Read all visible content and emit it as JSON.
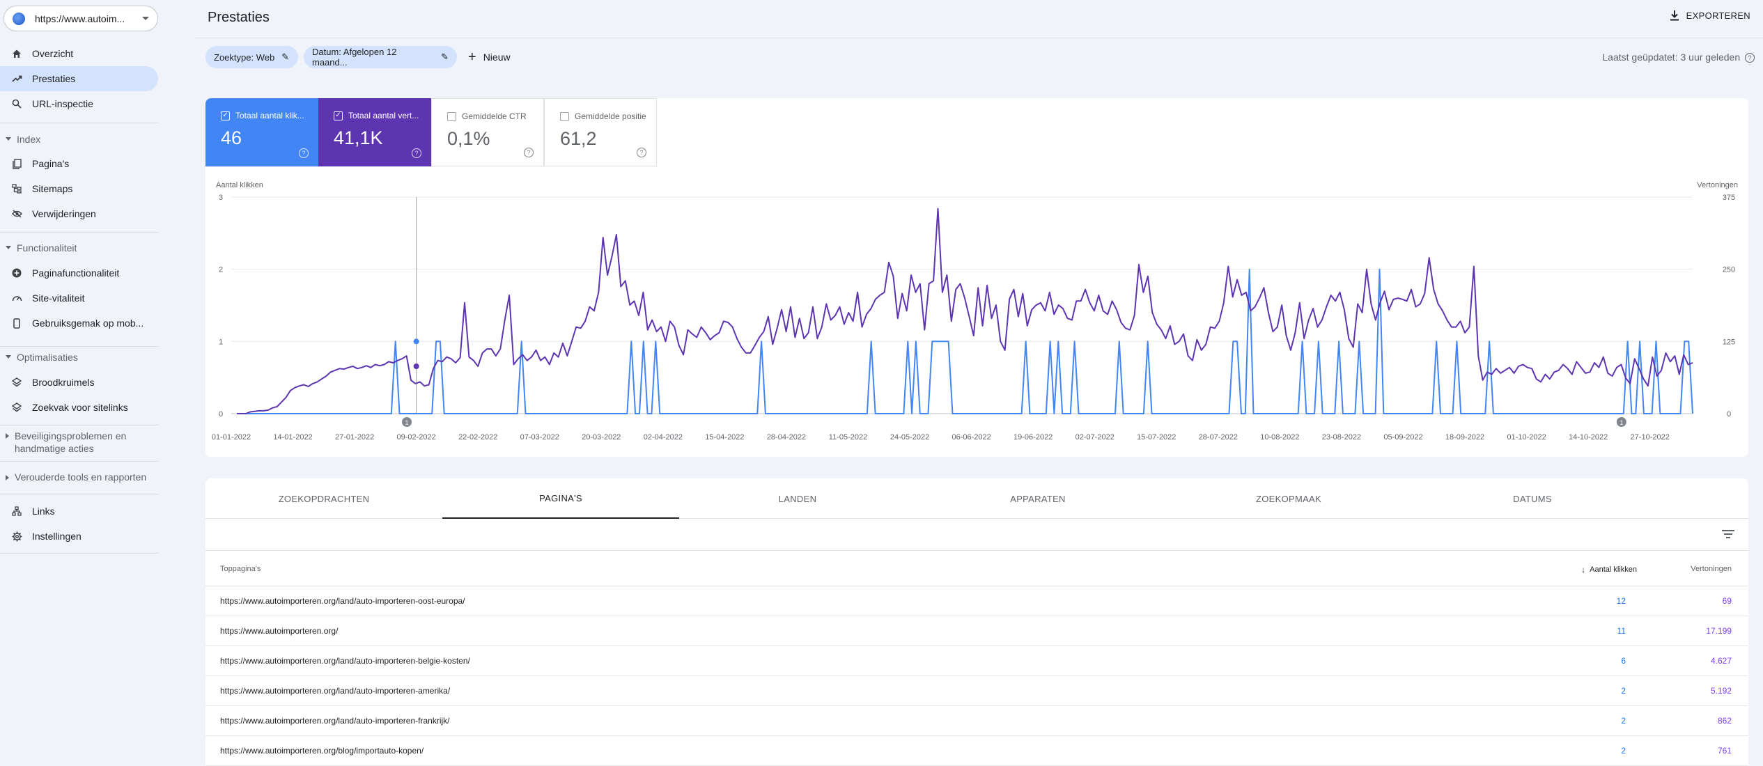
{
  "property": {
    "url": "https://www.autoim...",
    "icon": "globe-icon"
  },
  "sidebar": {
    "top": [
      {
        "label": "Overzicht",
        "icon": "home-icon"
      },
      {
        "label": "Prestaties",
        "icon": "trending-up-icon",
        "active": true
      },
      {
        "label": "URL-inspectie",
        "icon": "search-icon"
      }
    ],
    "groups": [
      {
        "label": "Index",
        "items": [
          {
            "label": "Pagina's",
            "icon": "pages-icon"
          },
          {
            "label": "Sitemaps",
            "icon": "sitemap-icon"
          },
          {
            "label": "Verwijderingen",
            "icon": "eye-off-icon"
          }
        ]
      },
      {
        "label": "Functionaliteit",
        "items": [
          {
            "label": "Paginafunctionaliteit",
            "icon": "plus-circle-icon"
          },
          {
            "label": "Site-vitaliteit",
            "icon": "gauge-icon"
          },
          {
            "label": "Gebruiksgemak op mob...",
            "icon": "smartphone-icon"
          }
        ]
      },
      {
        "label": "Optimalisaties",
        "items": [
          {
            "label": "Broodkruimels",
            "icon": "layers-icon"
          },
          {
            "label": "Zoekvak voor sitelinks",
            "icon": "layers-icon"
          }
        ]
      }
    ],
    "collapsed": [
      {
        "label": "Beveiligingsproblemen en handmatige acties"
      },
      {
        "label": "Verouderde tools en rapporten"
      }
    ],
    "bottom": [
      {
        "label": "Links",
        "icon": "links-icon"
      },
      {
        "label": "Instellingen",
        "icon": "gear-icon"
      }
    ]
  },
  "header": {
    "title": "Prestaties",
    "export_label": "EXPORTEREN",
    "updated": "Laatst geüpdatet: 3 uur geleden"
  },
  "filters": {
    "chips": [
      "Zoektype: Web",
      "Datum: Afgelopen 12 maand..."
    ],
    "new_label": "Nieuw"
  },
  "metrics": [
    {
      "label": "Totaal aantal klik...",
      "value": "46",
      "checked": true
    },
    {
      "label": "Totaal aantal vert...",
      "value": "41,1K",
      "checked": true
    },
    {
      "label": "Gemiddelde CTR",
      "value": "0,1%",
      "checked": false
    },
    {
      "label": "Gemiddelde positie",
      "value": "61,2",
      "checked": false
    }
  ],
  "colors": {
    "clicks": "#4285f4",
    "impressions": "#5e35b1",
    "active_nav": "#d3e3fd"
  },
  "chart_data": {
    "type": "line",
    "left_axis_label": "Aantal klikken",
    "right_axis_label": "Vertoningen",
    "left_ticks": [
      0,
      1,
      2,
      3
    ],
    "right_ticks": [
      0,
      125,
      250,
      375
    ],
    "ylim_left": [
      0,
      3
    ],
    "ylim_right": [
      0,
      375
    ],
    "x_tick_labels": [
      "01-01-2022",
      "14-01-2022",
      "27-01-2022",
      "09-02-2022",
      "22-02-2022",
      "07-03-2022",
      "20-03-2022",
      "02-04-2022",
      "15-04-2022",
      "28-04-2022",
      "11-05-2022",
      "24-05-2022",
      "06-06-2022",
      "19-06-2022",
      "02-07-2022",
      "15-07-2022",
      "28-07-2022",
      "10-08-2022",
      "23-08-2022",
      "05-09-2022",
      "18-09-2022",
      "01-10-2022",
      "14-10-2022",
      "27-10-2022"
    ],
    "x_range_days": [
      0,
      308
    ],
    "annotation_days": [
      37,
      293
    ],
    "annotation_label": "1",
    "grid": true,
    "series": [
      {
        "name": "Aantal klikken",
        "axis": "left",
        "values": [
          0,
          0,
          0,
          0,
          0,
          0,
          0,
          0,
          0,
          0,
          0,
          0,
          0,
          0,
          0,
          0,
          0,
          0,
          0,
          0,
          0,
          0,
          0,
          0,
          0,
          0,
          0,
          0,
          0,
          0,
          0,
          0,
          0,
          0,
          0,
          0,
          0,
          0,
          0,
          1,
          0,
          0,
          0,
          0,
          0,
          0,
          0,
          0,
          0,
          1,
          1,
          0,
          0,
          0,
          0,
          0,
          0,
          0,
          0,
          0,
          0,
          0,
          0,
          0,
          0,
          0,
          0,
          0,
          0,
          0,
          1,
          0,
          0,
          0,
          0,
          0,
          0,
          0,
          0,
          0,
          0,
          0,
          0,
          0,
          0,
          0,
          0,
          0,
          0,
          0,
          0,
          0,
          0,
          0,
          0,
          0,
          0,
          1,
          0,
          0,
          1,
          0,
          0,
          1,
          0,
          0,
          0,
          0,
          0,
          0,
          0,
          0,
          0,
          0,
          0,
          0,
          0,
          0,
          0,
          0,
          0,
          0,
          0,
          0,
          0,
          0,
          0,
          0,
          0,
          1,
          0,
          0,
          0,
          0,
          0,
          0,
          0,
          0,
          0,
          0,
          0,
          0,
          0,
          0,
          0,
          0,
          0,
          0,
          0,
          0,
          0,
          0,
          0,
          0,
          0,
          0,
          1,
          0,
          0,
          0,
          0,
          0,
          0,
          0,
          0,
          1,
          0,
          1,
          0,
          0,
          0,
          1,
          1,
          1,
          1,
          1,
          0,
          0,
          0,
          0,
          0,
          0,
          0,
          0,
          0,
          0,
          0,
          0,
          0,
          0,
          0,
          0,
          0,
          0,
          1,
          0,
          0,
          0,
          0,
          0,
          1,
          0,
          1,
          0,
          0,
          0,
          1,
          0,
          0,
          0,
          0,
          0,
          0,
          0,
          0,
          0,
          0,
          1,
          0,
          0,
          0,
          0,
          0,
          0,
          1,
          0,
          0,
          0,
          0,
          0,
          0,
          0,
          0,
          0,
          0,
          0,
          0,
          0,
          0,
          0,
          0,
          0,
          0,
          0,
          0,
          1,
          1,
          0,
          0,
          2,
          0,
          0,
          0,
          0,
          0,
          0,
          0,
          0,
          0,
          0,
          0,
          0,
          1,
          0,
          0,
          0,
          1,
          0,
          0,
          0,
          0,
          1,
          0,
          0,
          0,
          0,
          1,
          0,
          0,
          0,
          0,
          2,
          0,
          0,
          0,
          0,
          0,
          0,
          0,
          0,
          0,
          0,
          0,
          0,
          0,
          1,
          0,
          0,
          0,
          0,
          1,
          0,
          0,
          0,
          0,
          0,
          0,
          0,
          1,
          0,
          0,
          0,
          0,
          0,
          0,
          0,
          0,
          0,
          0,
          0,
          0,
          0,
          0,
          0,
          0,
          0,
          0,
          0,
          0,
          0,
          0,
          0,
          0,
          0,
          0,
          0,
          0,
          0,
          0,
          0,
          0,
          0,
          1,
          0,
          0,
          1,
          0,
          0,
          0,
          1,
          0,
          0,
          0,
          0,
          0,
          0,
          1,
          1,
          0
        ]
      },
      {
        "name": "Vertoningen",
        "axis": "right",
        "values": [
          0,
          0,
          0,
          3,
          4,
          5,
          5,
          6,
          10,
          12,
          20,
          28,
          40,
          45,
          48,
          50,
          47,
          52,
          55,
          60,
          65,
          72,
          75,
          78,
          77,
          80,
          82,
          78,
          80,
          83,
          80,
          85,
          83,
          85,
          90,
          88,
          92,
          95,
          100,
          58,
          52,
          55,
          48,
          50,
          78,
          92,
          90,
          98,
          95,
          88,
          97,
          192,
          98,
          92,
          82,
          105,
          112,
          112,
          100,
          112,
          162,
          205,
          85,
          95,
          102,
          92,
          98,
          110,
          92,
          98,
          85,
          105,
          98,
          122,
          100,
          125,
          150,
          148,
          160,
          185,
          178,
          210,
          305,
          240,
          272,
          310,
          220,
          230,
          188,
          195,
          170,
          210,
          145,
          162,
          142,
          150,
          125,
          160,
          150,
          118,
          102,
          145,
          138,
          132,
          150,
          140,
          128,
          135,
          140,
          160,
          158,
          150,
          130,
          115,
          105,
          105,
          118,
          132,
          142,
          168,
          120,
          148,
          180,
          142,
          185,
          132,
          165,
          130,
          140,
          185,
          130,
          150,
          190,
          162,
          170,
          185,
          155,
          175,
          160,
          210,
          150,
          172,
          182,
          198,
          205,
          210,
          262,
          238,
          165,
          208,
          178,
          240,
          210,
          225,
          145,
          225,
          230,
          355,
          210,
          240,
          160,
          215,
          225,
          200,
          168,
          135,
          218,
          152,
          222,
          165,
          188,
          125,
          110,
          198,
          215,
          168,
          208,
          152,
          180,
          188,
          192,
          178,
          210,
          172,
          188,
          182,
          165,
          162,
          195,
          195,
          215,
          192,
          178,
          205,
          178,
          172,
          195,
          180,
          158,
          148,
          145,
          170,
          258,
          210,
          238,
          175,
          155,
          145,
          130,
          152,
          120,
          125,
          138,
          100,
          92,
          128,
          110,
          120,
          150,
          148,
          160,
          192,
          255,
          202,
          232,
          205,
          210,
          178,
          185,
          200,
          218,
          175,
          142,
          150,
          188,
          135,
          110,
          140,
          192,
          130,
          162,
          182,
          150,
          162,
          185,
          205,
          195,
          210,
          180,
          130,
          115,
          190,
          175,
          250,
          190,
          162,
          192,
          212,
          180,
          198,
          200,
          198,
          195,
          215,
          185,
          190,
          208,
          270,
          215,
          190,
          178,
          162,
          150,
          150,
          160,
          140,
          150,
          255,
          100,
          58,
          72,
          68,
          78,
          70,
          75,
          80,
          70,
          82,
          85,
          80,
          78,
          60,
          55,
          68,
          60,
          72,
          75,
          85,
          78,
          68,
          90,
          80,
          70,
          72,
          88,
          80,
          98,
          70,
          65,
          80,
          85,
          62,
          52,
          95,
          78,
          60,
          48,
          98,
          65,
          75,
          105,
          90,
          100,
          68,
          102,
          85,
          88
        ]
      }
    ]
  },
  "table": {
    "tabs": [
      "ZOEKOPDRACHTEN",
      "PAGINA'S",
      "LANDEN",
      "APPARATEN",
      "ZOEKOPMAAK",
      "DATUMS"
    ],
    "active_tab": 1,
    "col_page": "Toppagina's",
    "col_clicks": "Aantal klikken",
    "col_impressions": "Vertoningen",
    "rows": [
      {
        "url": "https://www.autoimporteren.org/land/auto-importeren-oost-europa/",
        "clicks": "12",
        "impressions": "69"
      },
      {
        "url": "https://www.autoimporteren.org/",
        "clicks": "11",
        "impressions": "17.199"
      },
      {
        "url": "https://www.autoimporteren.org/land/auto-importeren-belgie-kosten/",
        "clicks": "6",
        "impressions": "4.627"
      },
      {
        "url": "https://www.autoimporteren.org/land/auto-importeren-amerika/",
        "clicks": "2",
        "impressions": "5.192"
      },
      {
        "url": "https://www.autoimporteren.org/land/auto-importeren-frankrijk/",
        "clicks": "2",
        "impressions": "862"
      },
      {
        "url": "https://www.autoimporteren.org/blog/importauto-kopen/",
        "clicks": "2",
        "impressions": "761"
      }
    ]
  }
}
